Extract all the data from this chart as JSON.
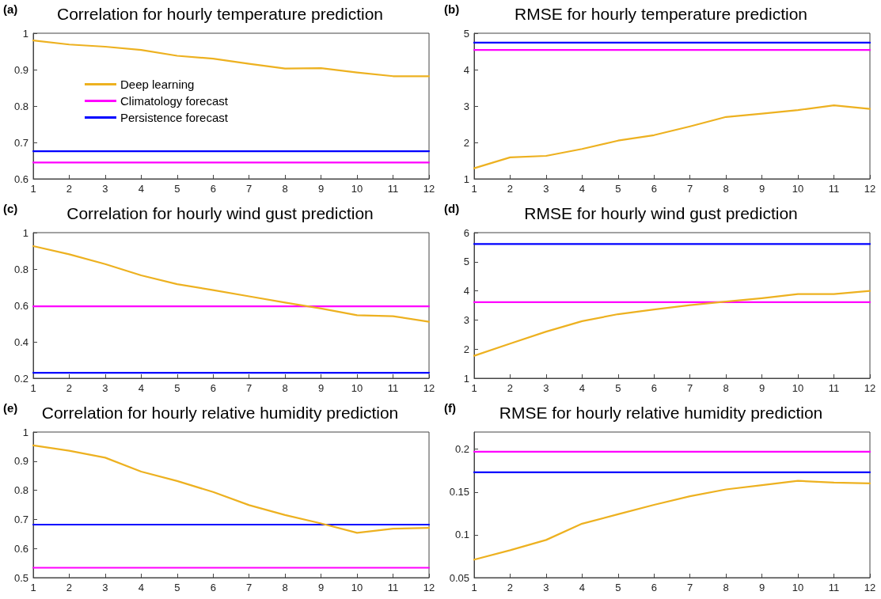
{
  "chart_data": [
    {
      "type": "line",
      "title": "Correlation for hourly temperature prediction",
      "annotations": [
        "(a)"
      ],
      "x": [
        1,
        2,
        3,
        4,
        5,
        6,
        7,
        8,
        9,
        10,
        11,
        12
      ],
      "xlim": [
        1,
        12
      ],
      "xticks": [
        1,
        2,
        3,
        4,
        5,
        6,
        7,
        8,
        9,
        10,
        11,
        12
      ],
      "ylim": [
        0.6,
        1
      ],
      "yticks": [
        0.6,
        0.7,
        0.8,
        0.9,
        1
      ],
      "legend": "top left",
      "marker": "none",
      "line_style": "solid",
      "series": [
        {
          "name": "Deep learning",
          "color": "#edb120",
          "values": [
            0.98,
            0.969,
            0.963,
            0.954,
            0.938,
            0.93,
            0.916,
            0.903,
            0.904,
            0.892,
            0.882,
            0.882
          ]
        },
        {
          "name": "Climatology forecast",
          "color": "#ff00ff",
          "values": [
            0.645,
            0.645,
            0.645,
            0.645,
            0.645,
            0.645,
            0.645,
            0.645,
            0.645,
            0.645,
            0.645,
            0.645
          ]
        },
        {
          "name": "Persistence forecast",
          "color": "#0000ff",
          "values": [
            0.676,
            0.676,
            0.676,
            0.676,
            0.676,
            0.676,
            0.676,
            0.676,
            0.676,
            0.676,
            0.676,
            0.676
          ]
        }
      ]
    },
    {
      "type": "line",
      "title": "RMSE for hourly temperature prediction",
      "annotations": [
        "(b)"
      ],
      "x": [
        1,
        2,
        3,
        4,
        5,
        6,
        7,
        8,
        9,
        10,
        11,
        12
      ],
      "xlim": [
        1,
        12
      ],
      "xticks": [
        1,
        2,
        3,
        4,
        5,
        6,
        7,
        8,
        9,
        10,
        11,
        12
      ],
      "ylim": [
        1,
        5
      ],
      "yticks": [
        1,
        2,
        3,
        4,
        5
      ],
      "marker": "none",
      "line_style": "solid",
      "series": [
        {
          "color": "#edb120",
          "values": [
            1.29,
            1.59,
            1.63,
            1.82,
            2.05,
            2.2,
            2.44,
            2.7,
            2.79,
            2.89,
            3.02,
            2.92
          ]
        },
        {
          "color": "#ff00ff",
          "values": [
            4.54,
            4.54,
            4.54,
            4.54,
            4.54,
            4.54,
            4.54,
            4.54,
            4.54,
            4.54,
            4.54,
            4.54
          ]
        },
        {
          "color": "#0000ff",
          "values": [
            4.74,
            4.74,
            4.74,
            4.74,
            4.74,
            4.74,
            4.74,
            4.74,
            4.74,
            4.74,
            4.74,
            4.74
          ]
        }
      ]
    },
    {
      "type": "line",
      "title": "Correlation for hourly wind gust prediction",
      "annotations": [
        "(c)"
      ],
      "x": [
        1,
        2,
        3,
        4,
        5,
        6,
        7,
        8,
        9,
        10,
        11,
        12
      ],
      "xlim": [
        1,
        12
      ],
      "xticks": [
        1,
        2,
        3,
        4,
        5,
        6,
        7,
        8,
        9,
        10,
        11,
        12
      ],
      "ylim": [
        0.2,
        1
      ],
      "yticks": [
        0.2,
        0.4,
        0.6,
        0.8,
        1
      ],
      "marker": "none",
      "line_style": "solid",
      "series": [
        {
          "color": "#edb120",
          "values": [
            0.926,
            0.881,
            0.827,
            0.765,
            0.717,
            0.684,
            0.65,
            0.616,
            0.583,
            0.546,
            0.541,
            0.51
          ]
        },
        {
          "color": "#ff00ff",
          "values": [
            0.595,
            0.595,
            0.595,
            0.595,
            0.595,
            0.595,
            0.595,
            0.595,
            0.595,
            0.595,
            0.595,
            0.595
          ]
        },
        {
          "color": "#0000ff",
          "values": [
            0.23,
            0.23,
            0.23,
            0.23,
            0.23,
            0.23,
            0.23,
            0.23,
            0.23,
            0.23,
            0.23,
            0.23
          ]
        }
      ]
    },
    {
      "type": "line",
      "title": "RMSE for hourly wind gust prediction",
      "annotations": [
        "(d)"
      ],
      "x": [
        1,
        2,
        3,
        4,
        5,
        6,
        7,
        8,
        9,
        10,
        11,
        12
      ],
      "xlim": [
        1,
        12
      ],
      "xticks": [
        1,
        2,
        3,
        4,
        5,
        6,
        7,
        8,
        9,
        10,
        11,
        12
      ],
      "ylim": [
        1,
        6
      ],
      "yticks": [
        1,
        2,
        3,
        4,
        5,
        6
      ],
      "marker": "none",
      "line_style": "solid",
      "series": [
        {
          "color": "#edb120",
          "values": [
            1.77,
            2.19,
            2.6,
            2.96,
            3.2,
            3.36,
            3.51,
            3.63,
            3.75,
            3.89,
            3.89,
            4.0
          ]
        },
        {
          "color": "#ff00ff",
          "values": [
            3.61,
            3.61,
            3.61,
            3.61,
            3.61,
            3.61,
            3.61,
            3.61,
            3.61,
            3.61,
            3.61,
            3.61
          ]
        },
        {
          "color": "#0000ff",
          "values": [
            5.61,
            5.61,
            5.61,
            5.61,
            5.61,
            5.61,
            5.61,
            5.61,
            5.61,
            5.61,
            5.61,
            5.61
          ]
        }
      ]
    },
    {
      "type": "line",
      "title": "Correlation for hourly relative humidity prediction",
      "annotations": [
        "(e)"
      ],
      "x": [
        1,
        2,
        3,
        4,
        5,
        6,
        7,
        8,
        9,
        10,
        11,
        12
      ],
      "xlim": [
        1,
        12
      ],
      "xticks": [
        1,
        2,
        3,
        4,
        5,
        6,
        7,
        8,
        9,
        10,
        11,
        12
      ],
      "ylim": [
        0.5,
        1
      ],
      "yticks": [
        0.5,
        0.6,
        0.7,
        0.8,
        0.9,
        1
      ],
      "marker": "none",
      "line_style": "solid",
      "series": [
        {
          "color": "#edb120",
          "values": [
            0.954,
            0.936,
            0.912,
            0.864,
            0.832,
            0.794,
            0.749,
            0.715,
            0.686,
            0.654,
            0.668,
            0.671
          ]
        },
        {
          "color": "#ff00ff",
          "values": [
            0.534,
            0.534,
            0.534,
            0.534,
            0.534,
            0.534,
            0.534,
            0.534,
            0.534,
            0.534,
            0.534,
            0.534
          ]
        },
        {
          "color": "#0000ff",
          "values": [
            0.682,
            0.682,
            0.682,
            0.682,
            0.682,
            0.682,
            0.682,
            0.682,
            0.682,
            0.682,
            0.682,
            0.682
          ]
        }
      ]
    },
    {
      "type": "line",
      "title": "RMSE for hourly relative humidity prediction",
      "annotations": [
        "(f)"
      ],
      "x": [
        1,
        2,
        3,
        4,
        5,
        6,
        7,
        8,
        9,
        10,
        11,
        12
      ],
      "xlim": [
        1,
        12
      ],
      "xticks": [
        1,
        2,
        3,
        4,
        5,
        6,
        7,
        8,
        9,
        10,
        11,
        12
      ],
      "ylim": [
        0.05,
        0.22
      ],
      "yticks": [
        0.05,
        0.1,
        0.15,
        0.2
      ],
      "marker": "none",
      "line_style": "solid",
      "series": [
        {
          "color": "#edb120",
          "values": [
            0.071,
            0.082,
            0.094,
            0.113,
            0.124,
            0.135,
            0.145,
            0.153,
            0.158,
            0.163,
            0.161,
            0.16
          ]
        },
        {
          "color": "#ff00ff",
          "values": [
            0.197,
            0.197,
            0.197,
            0.197,
            0.197,
            0.197,
            0.197,
            0.197,
            0.197,
            0.197,
            0.197,
            0.197
          ]
        },
        {
          "color": "#0000ff",
          "values": [
            0.173,
            0.173,
            0.173,
            0.173,
            0.173,
            0.173,
            0.173,
            0.173,
            0.173,
            0.173,
            0.173,
            0.173
          ]
        }
      ]
    }
  ]
}
